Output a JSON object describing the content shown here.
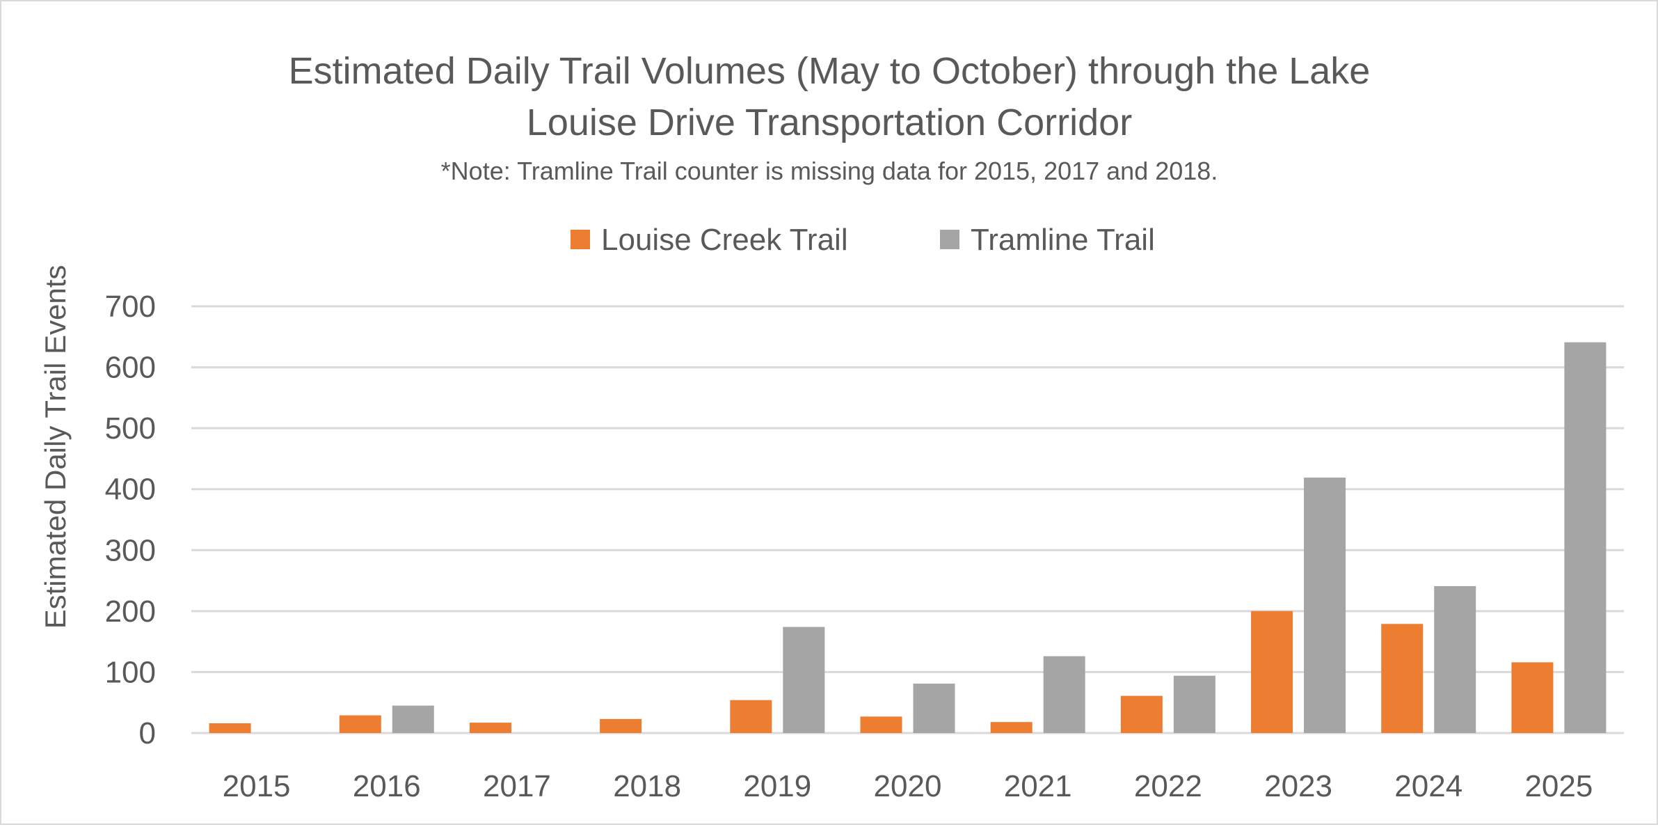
{
  "chart_data": {
    "type": "bar",
    "title": "Estimated Daily Trail Volumes (May to October) through the Lake Louise Drive Transportation Corridor",
    "title_lines": [
      "Estimated Daily Trail Volumes (May to October) through the Lake",
      "Louise Drive Transportation Corridor"
    ],
    "subtitle": "*Note: Tramline Trail counter is missing data for 2015, 2017 and 2018.",
    "xlabel": "",
    "ylabel": "Estimated Daily Trail Events",
    "ylim": [
      0,
      700
    ],
    "yticks": [
      0,
      100,
      200,
      300,
      400,
      500,
      600,
      700
    ],
    "grid": true,
    "legend_position": "top",
    "categories": [
      "2015",
      "2016",
      "2017",
      "2018",
      "2019",
      "2020",
      "2021",
      "2022",
      "2023",
      "2024",
      "2025"
    ],
    "series": [
      {
        "name": "Louise Creek Trail",
        "color": "#ed7d31",
        "values": [
          16,
          29,
          17,
          23,
          54,
          27,
          18,
          61,
          200,
          179,
          116
        ]
      },
      {
        "name": "Tramline Trail",
        "color": "#a5a5a5",
        "values": [
          null,
          45,
          null,
          null,
          174,
          81,
          126,
          94,
          419,
          241,
          641
        ]
      }
    ]
  }
}
